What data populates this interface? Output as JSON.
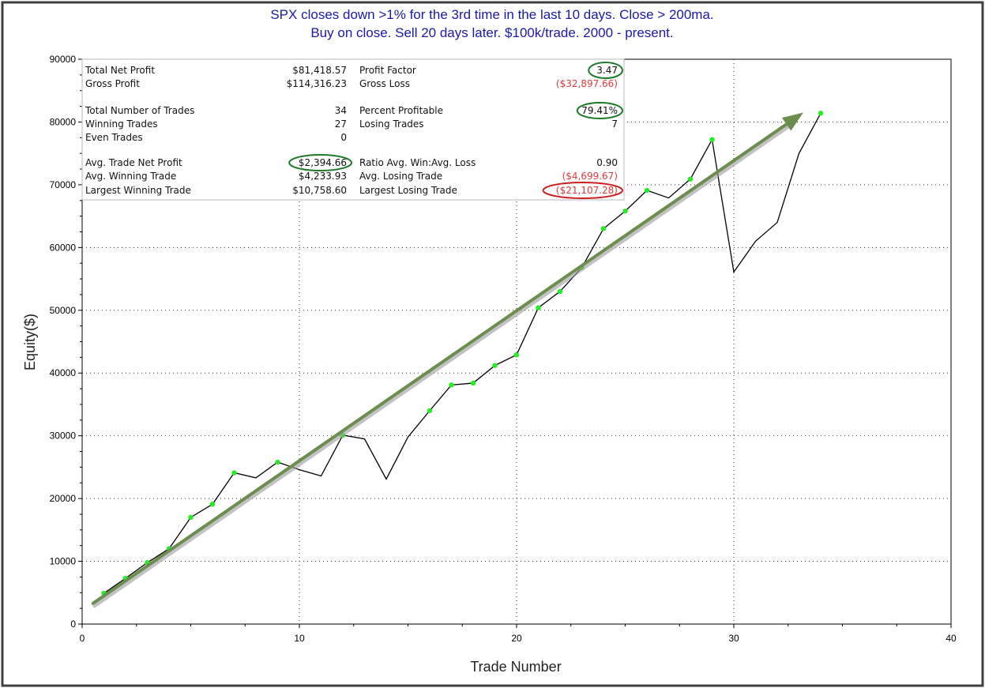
{
  "chart_data": {
    "type": "line",
    "title": "SPX closes down >1% for the 3rd time in the last 10 days. Close > 200ma.",
    "subtitle": "Buy on close. Sell 20 days later. $100k/trade. 2000 - present.",
    "xlabel": "Trade Number",
    "ylabel": "Equity($)",
    "xlim": [
      0,
      40
    ],
    "ylim": [
      0,
      90000
    ],
    "x_ticks": [
      "0",
      "10",
      "20",
      "30",
      "40"
    ],
    "y_ticks": [
      "0",
      "10000",
      "20000",
      "30000",
      "40000",
      "50000",
      "60000",
      "70000",
      "80000",
      "90000"
    ],
    "grid": true,
    "series": [
      {
        "color": "#000000",
        "marker_color": "#22ee22",
        "points": [
          {
            "x": 1,
            "y": 4900,
            "high": true
          },
          {
            "x": 2,
            "y": 7300,
            "high": true
          },
          {
            "x": 3,
            "y": 9800,
            "high": true
          },
          {
            "x": 4,
            "y": 12000,
            "high": true
          },
          {
            "x": 5,
            "y": 17000,
            "high": true
          },
          {
            "x": 6,
            "y": 19100,
            "high": true
          },
          {
            "x": 7,
            "y": 24100,
            "high": true
          },
          {
            "x": 8,
            "y": 23300,
            "high": false
          },
          {
            "x": 9,
            "y": 25800,
            "high": true
          },
          {
            "x": 10,
            "y": 24600,
            "high": false
          },
          {
            "x": 11,
            "y": 23600,
            "high": false
          },
          {
            "x": 12,
            "y": 30100,
            "high": true
          },
          {
            "x": 13,
            "y": 29500,
            "high": false
          },
          {
            "x": 14,
            "y": 23100,
            "high": false
          },
          {
            "x": 15,
            "y": 29800,
            "high": false
          },
          {
            "x": 16,
            "y": 34000,
            "high": true
          },
          {
            "x": 17,
            "y": 38100,
            "high": true
          },
          {
            "x": 18,
            "y": 38400,
            "high": true
          },
          {
            "x": 19,
            "y": 41200,
            "high": true
          },
          {
            "x": 20,
            "y": 42900,
            "high": true
          },
          {
            "x": 21,
            "y": 50400,
            "high": true
          },
          {
            "x": 22,
            "y": 53000,
            "high": true
          },
          {
            "x": 23,
            "y": 56800,
            "high": true
          },
          {
            "x": 24,
            "y": 63000,
            "high": true
          },
          {
            "x": 25,
            "y": 65800,
            "high": true
          },
          {
            "x": 26,
            "y": 69100,
            "high": true
          },
          {
            "x": 27,
            "y": 67900,
            "high": false
          },
          {
            "x": 28,
            "y": 70900,
            "high": true
          },
          {
            "x": 29,
            "y": 77200,
            "high": true
          },
          {
            "x": 30,
            "y": 56100,
            "high": false
          },
          {
            "x": 31,
            "y": 61000,
            "high": false
          },
          {
            "x": 32,
            "y": 64000,
            "high": false
          },
          {
            "x": 33,
            "y": 75000,
            "high": false
          },
          {
            "x": 34,
            "y": 81400,
            "high": true
          }
        ]
      }
    ],
    "trend_arrow": {
      "color": "#6b8e4e",
      "from": {
        "x": 0.5,
        "y": 3300
      },
      "to": {
        "x": 33.2,
        "y": 81500
      }
    }
  },
  "stats": {
    "left": [
      {
        "label": "Total Net Profit",
        "value": "$81,418.57",
        "circle": false,
        "red": false
      },
      {
        "label": "Gross Profit",
        "value": "$114,316.23",
        "circle": false,
        "red": false
      },
      {
        "label": "Total Number of Trades",
        "value": "34",
        "circle": false,
        "red": false
      },
      {
        "label": "Winning Trades",
        "value": "27",
        "circle": false,
        "red": false
      },
      {
        "label": "Even Trades",
        "value": "0",
        "circle": false,
        "red": false
      },
      {
        "label": "Avg. Trade Net Profit",
        "value": "$2,394.66",
        "circle": true,
        "red": false
      },
      {
        "label": "Avg. Winning Trade",
        "value": "$4,233.93",
        "circle": false,
        "red": false
      },
      {
        "label": "Largest Winning Trade",
        "value": "$10,758.60",
        "circle": false,
        "red": false
      }
    ],
    "right": [
      {
        "label": "Profit Factor",
        "value": "3.47",
        "circle": true,
        "red": false
      },
      {
        "label": "Gross Loss",
        "value": "($32,897.66)",
        "circle": false,
        "red": true
      },
      {
        "label": "Percent Profitable",
        "value": "79.41%",
        "circle": true,
        "red": false
      },
      {
        "label": "Losing Trades",
        "value": "7",
        "circle": false,
        "red": false
      },
      {
        "label": "",
        "value": "",
        "circle": false,
        "red": false
      },
      {
        "label": "Ratio Avg. Win:Avg. Loss",
        "value": "0.90",
        "circle": false,
        "red": false
      },
      {
        "label": "Avg. Losing Trade",
        "value": "($4,699.67)",
        "circle": false,
        "red": true
      },
      {
        "label": "Largest Losing Trade",
        "value": "($21,107.28)",
        "circle": true,
        "red": true
      }
    ]
  },
  "colors": {
    "title": "#1a1aa8",
    "positive_circle": "#1e7a2a",
    "negative_circle": "#cc1f1f",
    "negative_text": "#e03a3a"
  }
}
